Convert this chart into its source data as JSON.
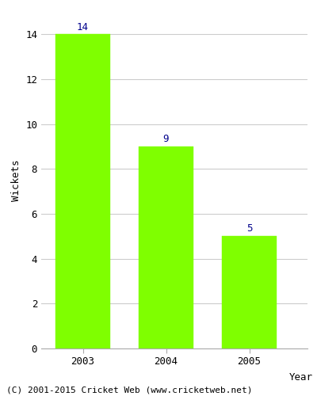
{
  "categories": [
    "2003",
    "2004",
    "2005"
  ],
  "values": [
    14,
    9,
    5
  ],
  "bar_color": "#7FFF00",
  "bar_edge_color": "#7FFF00",
  "xlabel": "Year",
  "ylabel": "Wickets",
  "ylim": [
    0,
    15.0
  ],
  "yticks": [
    0,
    2,
    4,
    6,
    8,
    10,
    12,
    14
  ],
  "label_color": "#00008B",
  "label_fontsize": 9,
  "axis_label_fontsize": 9,
  "tick_fontsize": 9,
  "grid_color": "#cccccc",
  "background_color": "#ffffff",
  "footer_text": "(C) 2001-2015 Cricket Web (www.cricketweb.net)",
  "footer_fontsize": 8,
  "bar_width": 0.65
}
